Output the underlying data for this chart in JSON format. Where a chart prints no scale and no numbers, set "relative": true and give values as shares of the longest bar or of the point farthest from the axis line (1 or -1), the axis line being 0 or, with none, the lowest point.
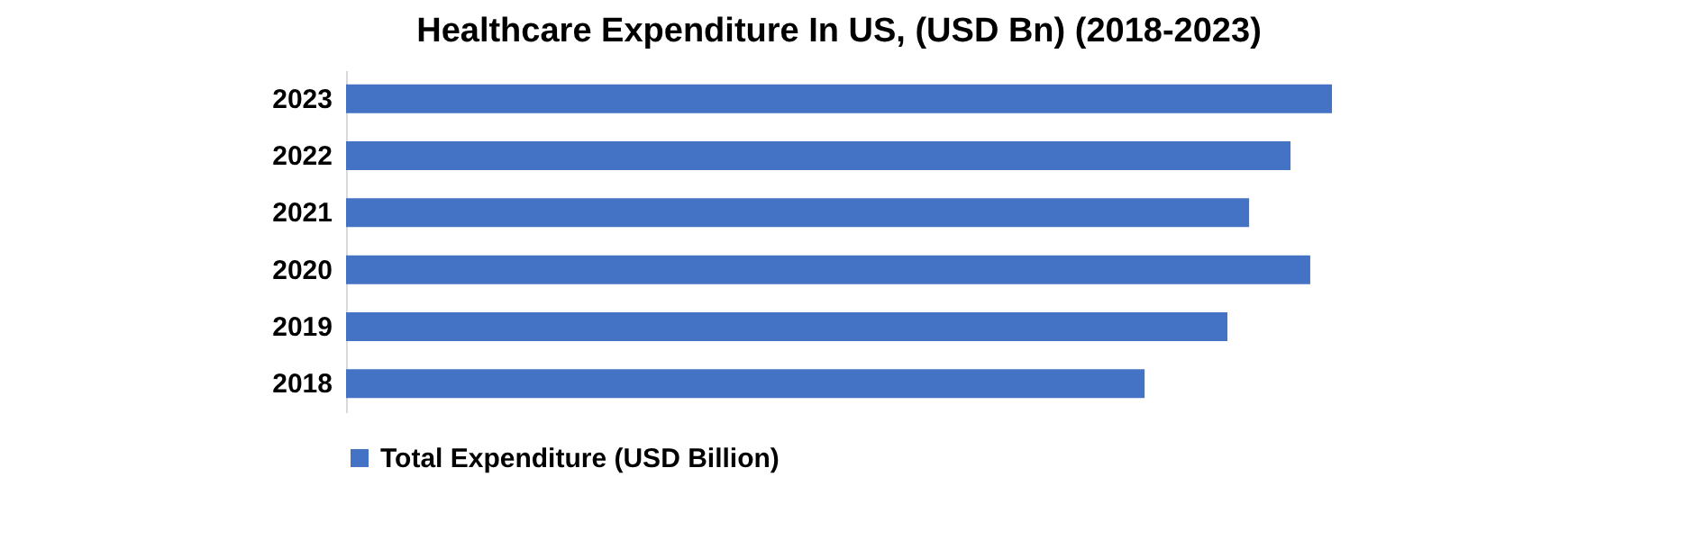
{
  "chart_data": {
    "type": "bar",
    "orientation": "horizontal",
    "relative": true,
    "title": "Healthcare Expenditure In US, (USD Bn) (2018-2023)",
    "categories": [
      "2023",
      "2022",
      "2021",
      "2020",
      "2019",
      "2018"
    ],
    "series": [
      {
        "name": "Total Expenditure (USD Billion)",
        "color": "#4472c4",
        "values": [
          1,
          0.958,
          0.916,
          0.978,
          0.894,
          0.81
        ]
      }
    ],
    "legend": "bottom"
  }
}
